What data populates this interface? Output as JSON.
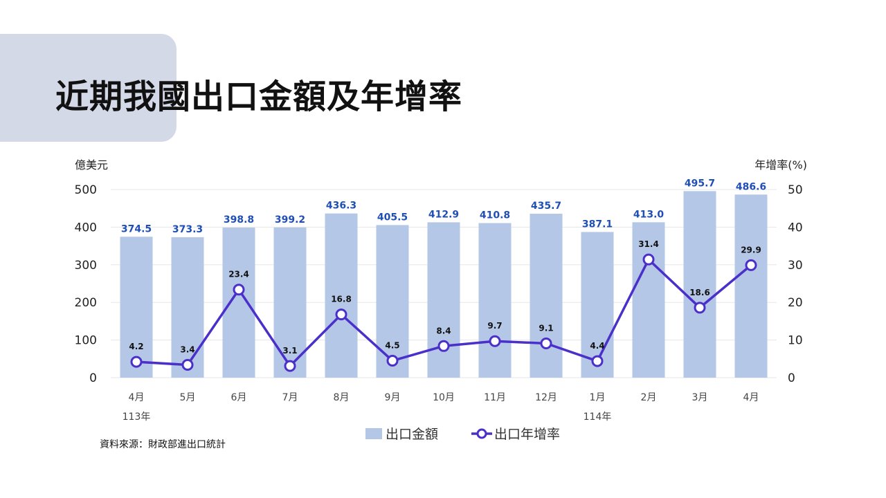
{
  "page": {
    "title": "近期我國出口金額及年增率",
    "source": "資料來源：財政部進出口統計"
  },
  "colors": {
    "title_block": "#d4d9e8",
    "bar": "#b4c7e7",
    "bar_label": "#1f4fb5",
    "line": "#4a2fc9",
    "grid": "#e6e6e6"
  },
  "chart_data": {
    "type": "bar",
    "categories": [
      "4月",
      "5月",
      "6月",
      "7月",
      "8月",
      "9月",
      "10月",
      "11月",
      "12月",
      "1月",
      "2月",
      "3月",
      "4月"
    ],
    "year_labels": [
      {
        "index": 0,
        "text": "113年"
      },
      {
        "index": 9,
        "text": "114年"
      }
    ],
    "series": [
      {
        "name": "出口金額",
        "type": "bar",
        "axis": "left",
        "values": [
          374.5,
          373.3,
          398.8,
          399.2,
          436.3,
          405.5,
          412.9,
          410.8,
          435.7,
          387.1,
          413.0,
          495.7,
          486.6
        ],
        "labels": [
          "374.5",
          "373.3",
          "398.8",
          "399.2",
          "436.3",
          "405.5",
          "412.9",
          "410.8",
          "435.7",
          "387.1",
          "413.0",
          "495.7",
          "486.6"
        ]
      },
      {
        "name": "出口年增率",
        "type": "line",
        "axis": "right",
        "values": [
          4.2,
          3.4,
          23.4,
          3.1,
          16.8,
          4.5,
          8.4,
          9.7,
          9.1,
          4.4,
          31.4,
          18.6,
          29.9
        ],
        "labels": [
          "4.2",
          "3.4",
          "23.4",
          "3.1",
          "16.8",
          "4.5",
          "8.4",
          "9.7",
          "9.1",
          "4.4",
          "31.4",
          "18.6",
          "29.9"
        ]
      }
    ],
    "y_left": {
      "label": "億美元",
      "ylim": [
        0,
        500
      ],
      "ticks": [
        "0",
        "100",
        "200",
        "300",
        "400",
        "500"
      ]
    },
    "y_right": {
      "label": "年增率(%)",
      "ylim": [
        0,
        50
      ],
      "ticks": [
        "0",
        "10",
        "20",
        "30",
        "40",
        "50"
      ]
    },
    "grid": true,
    "legend_position": "bottom"
  }
}
